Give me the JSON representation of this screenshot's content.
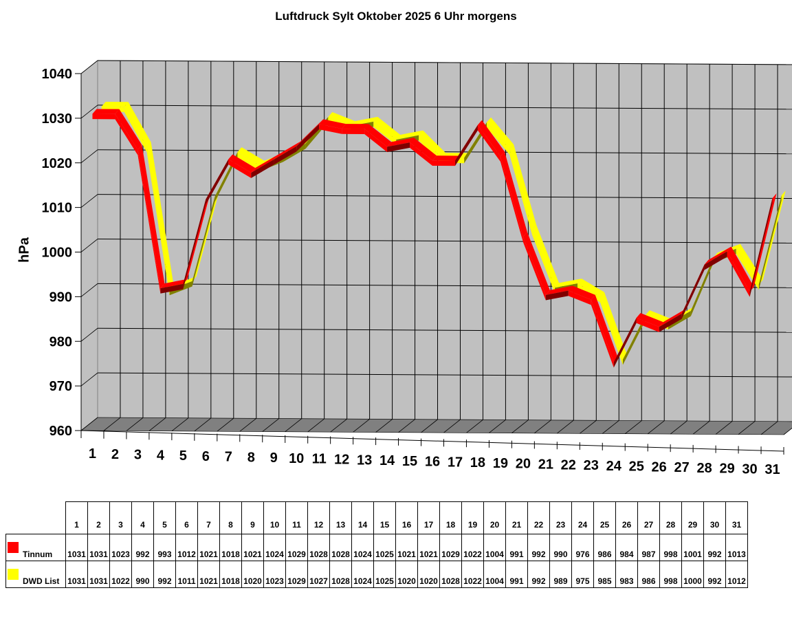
{
  "title": "Luftdruck Sylt Oktober 2025 6 Uhr morgens",
  "y_axis": {
    "label": "hPa",
    "ticks": [
      "960",
      "970",
      "980",
      "990",
      "1000",
      "1010",
      "1020",
      "1030",
      "1040"
    ]
  },
  "x_axis": {
    "ticks": [
      "1",
      "2",
      "3",
      "4",
      "5",
      "6",
      "7",
      "8",
      "9",
      "10",
      "11",
      "12",
      "13",
      "14",
      "15",
      "16",
      "17",
      "18",
      "19",
      "20",
      "21",
      "22",
      "23",
      "24",
      "25",
      "26",
      "27",
      "28",
      "29",
      "30",
      "31"
    ]
  },
  "legend": [
    {
      "name": "Tinnum",
      "color": "#ff0000"
    },
    {
      "name": "DWD List",
      "color": "#ffff00"
    }
  ],
  "colors": {
    "wall": "#c0c0c0",
    "floor": "#808080",
    "tinnum": "#ff0000",
    "tinnum_shade": "#800000",
    "dwd": "#ffff00",
    "dwd_shade": "#808000"
  },
  "table": {
    "days": [
      "1",
      "2",
      "3",
      "4",
      "5",
      "6",
      "7",
      "8",
      "9",
      "10",
      "11",
      "12",
      "13",
      "14",
      "15",
      "16",
      "17",
      "18",
      "19",
      "20",
      "21",
      "22",
      "23",
      "24",
      "25",
      "26",
      "27",
      "28",
      "29",
      "30",
      "31"
    ],
    "rows": [
      {
        "label": "Tinnum",
        "values": [
          "1031",
          "1031",
          "1023",
          "992",
          "993",
          "1012",
          "1021",
          "1018",
          "1021",
          "1024",
          "1029",
          "1028",
          "1028",
          "1024",
          "1025",
          "1021",
          "1021",
          "1029",
          "1022",
          "1004",
          "991",
          "992",
          "990",
          "976",
          "986",
          "984",
          "987",
          "998",
          "1001",
          "992",
          "1013"
        ]
      },
      {
        "label": "DWD List",
        "values": [
          "1031",
          "1031",
          "1022",
          "990",
          "992",
          "1011",
          "1021",
          "1018",
          "1020",
          "1023",
          "1029",
          "1027",
          "1028",
          "1024",
          "1025",
          "1020",
          "1020",
          "1028",
          "1022",
          "1004",
          "991",
          "992",
          "989",
          "975",
          "985",
          "983",
          "986",
          "998",
          "1000",
          "992",
          "1012"
        ]
      }
    ]
  },
  "chart_data": {
    "type": "line",
    "title": "Luftdruck Sylt Oktober 2025 6 Uhr morgens",
    "xlabel": "",
    "ylabel": "hPa",
    "ylim": [
      960,
      1040
    ],
    "grid": true,
    "style": "3d-ribbon",
    "legend_position": "table-bottom",
    "categories": [
      "1",
      "2",
      "3",
      "4",
      "5",
      "6",
      "7",
      "8",
      "9",
      "10",
      "11",
      "12",
      "13",
      "14",
      "15",
      "16",
      "17",
      "18",
      "19",
      "20",
      "21",
      "22",
      "23",
      "24",
      "25",
      "26",
      "27",
      "28",
      "29",
      "30",
      "31"
    ],
    "series": [
      {
        "name": "Tinnum",
        "color": "#ff0000",
        "values": [
          1031,
          1031,
          1023,
          992,
          993,
          1012,
          1021,
          1018,
          1021,
          1024,
          1029,
          1028,
          1028,
          1024,
          1025,
          1021,
          1021,
          1029,
          1022,
          1004,
          991,
          992,
          990,
          976,
          986,
          984,
          987,
          998,
          1001,
          992,
          1013
        ]
      },
      {
        "name": "DWD List",
        "color": "#ffff00",
        "values": [
          1031,
          1031,
          1022,
          990,
          992,
          1011,
          1021,
          1018,
          1020,
          1023,
          1029,
          1027,
          1028,
          1024,
          1025,
          1020,
          1020,
          1028,
          1022,
          1004,
          991,
          992,
          989,
          975,
          985,
          983,
          986,
          998,
          1000,
          992,
          1012
        ]
      }
    ]
  }
}
